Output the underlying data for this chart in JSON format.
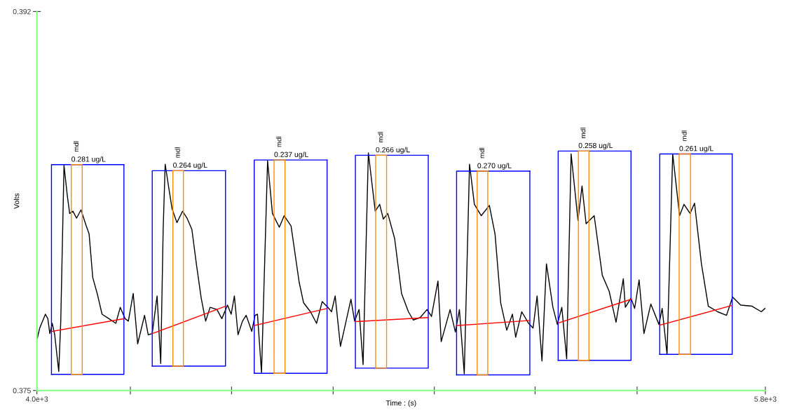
{
  "chart_data": {
    "type": "line",
    "xlabel": "Time : (s)",
    "ylabel": "Volts",
    "xlim": [
      4000,
      5800
    ],
    "ylim": [
      0.375,
      0.392
    ],
    "xticks": [
      {
        "value": 4000,
        "label": "4.0e+3"
      },
      {
        "value": 4231,
        "label": null
      },
      {
        "value": 4481,
        "label": null
      },
      {
        "value": 4732,
        "label": null
      },
      {
        "value": 4982,
        "label": null
      },
      {
        "value": 5231,
        "label": null
      },
      {
        "value": 5483,
        "label": null
      },
      {
        "value": 5800,
        "label": "5.8e+3"
      }
    ],
    "yticks": [
      0.375,
      0.392
    ],
    "series": [
      {
        "color": "#000000",
        "x": [
          4001,
          4007,
          4021,
          4027,
          4032,
          4038,
          4044,
          4054,
          4059,
          4067,
          4075,
          4081,
          4089,
          4098,
          4109,
          4121,
          4129,
          4138,
          4149,
          4161,
          4178,
          4195,
          4206,
          4218,
          4226,
          4238,
          4249,
          4266,
          4275,
          4285,
          4297,
          4306,
          4312,
          4317,
          4326,
          4334,
          4346,
          4360,
          4371,
          4383,
          4394,
          4406,
          4417,
          4428,
          4445,
          4457,
          4471,
          4480,
          4488,
          4497,
          4508,
          4517,
          4531,
          4539,
          4545,
          4555,
          4570,
          4582,
          4599,
          4611,
          4628,
          4648,
          4659,
          4676,
          4691,
          4705,
          4719,
          4728,
          4737,
          4750,
          4759,
          4776,
          4785,
          4796,
          4806,
          4819,
          4836,
          4847,
          4856,
          4867,
          4884,
          4901,
          4918,
          4930,
          4947,
          4964,
          4975,
          4991,
          4999,
          5021,
          5034,
          5044,
          5056,
          5069,
          5081,
          5098,
          5118,
          5132,
          5146,
          5161,
          5175,
          5183,
          5198,
          5215,
          5226,
          5236,
          5248,
          5259,
          5275,
          5286,
          5297,
          5309,
          5320,
          5337,
          5347,
          5357,
          5377,
          5397,
          5414,
          5431,
          5449,
          5454,
          5468,
          5477,
          5488,
          5500,
          5517,
          5537,
          5545,
          5557,
          5571,
          5588,
          5599,
          5614,
          5625,
          5642,
          5659,
          5682,
          5704,
          5719,
          5739,
          5767,
          5790,
          5799
        ],
        "values": [
          0.37734,
          0.3778,
          0.37842,
          0.37822,
          0.37755,
          0.37801,
          0.3775,
          0.37585,
          0.37811,
          0.3851,
          0.38376,
          0.38294,
          0.38304,
          0.38273,
          0.3831,
          0.38243,
          0.38202,
          0.38007,
          0.37935,
          0.37842,
          0.37822,
          0.37801,
          0.37873,
          0.37822,
          0.37811,
          0.37935,
          0.37709,
          0.37837,
          0.3775,
          0.37755,
          0.37924,
          0.37621,
          0.38222,
          0.38515,
          0.38407,
          0.38315,
          0.38253,
          0.38304,
          0.38273,
          0.38222,
          0.38068,
          0.37914,
          0.37811,
          0.37873,
          0.37863,
          0.37822,
          0.37883,
          0.37842,
          0.37924,
          0.3775,
          0.37811,
          0.37837,
          0.37765,
          0.37837,
          0.37842,
          0.3758,
          0.3853,
          0.38294,
          0.38232,
          0.38284,
          0.38238,
          0.37986,
          0.37893,
          0.37853,
          0.37801,
          0.37899,
          0.37873,
          0.37853,
          0.37924,
          0.37698,
          0.3777,
          0.37909,
          0.37811,
          0.37863,
          0.37616,
          0.38566,
          0.38304,
          0.38335,
          0.38269,
          0.38294,
          0.38181,
          0.37935,
          0.37853,
          0.37816,
          0.37827,
          0.37863,
          0.37832,
          0.37991,
          0.37719,
          0.37863,
          0.37762,
          0.37863,
          0.37575,
          0.38515,
          0.38335,
          0.38284,
          0.3833,
          0.38202,
          0.37893,
          0.3777,
          0.37842,
          0.37739,
          0.37853,
          0.37801,
          0.3778,
          0.37924,
          0.37632,
          0.38068,
          0.37873,
          0.37796,
          0.37873,
          0.37642,
          0.38561,
          0.38263,
          0.38417,
          0.38248,
          0.38284,
          0.38017,
          0.37945,
          0.37806,
          0.38001,
          0.37873,
          0.37914,
          0.37868,
          0.37996,
          0.37755,
          0.37888,
          0.37796,
          0.37868,
          0.37662,
          0.38561,
          0.38284,
          0.38335,
          0.38294,
          0.3834,
          0.38068,
          0.37878,
          0.37853,
          0.37837,
          0.37919,
          0.37883,
          0.37878,
          0.37853,
          0.37868
        ]
      },
      {
        "color": "#0000ff",
        "x": [
          4036,
          4036,
          4215
        ],
        "values": [
          0.37572,
          0.38513,
          0.38513
        ]
      },
      {
        "color": "#0000ff",
        "x": [
          4215,
          4215,
          4036
        ],
        "values": [
          0.38513,
          0.37572,
          0.37572
        ]
      },
      {
        "color": "#0000ff",
        "x": [
          4285,
          4285,
          4466
        ],
        "values": [
          0.37609,
          0.38486,
          0.38486
        ]
      },
      {
        "color": "#0000ff",
        "x": [
          4466,
          4466,
          4285
        ],
        "values": [
          0.38486,
          0.37609,
          0.37609
        ]
      },
      {
        "color": "#0000ff",
        "x": [
          4537,
          4537,
          4717
        ],
        "values": [
          0.37577,
          0.38534,
          0.38534
        ]
      },
      {
        "color": "#0000ff",
        "x": [
          4717,
          4717,
          4537
        ],
        "values": [
          0.38534,
          0.37577,
          0.37577
        ]
      },
      {
        "color": "#0000ff",
        "x": [
          4787,
          4787,
          4967
        ],
        "values": [
          0.376,
          0.38555,
          0.38555
        ]
      },
      {
        "color": "#0000ff",
        "x": [
          4967,
          4967,
          4787
        ],
        "values": [
          0.38555,
          0.376,
          0.376
        ]
      },
      {
        "color": "#0000ff",
        "x": [
          5037,
          5037,
          5218
        ],
        "values": [
          0.3757,
          0.38484,
          0.38484
        ]
      },
      {
        "color": "#0000ff",
        "x": [
          5218,
          5218,
          5037
        ],
        "values": [
          0.38484,
          0.3757,
          0.3757
        ]
      },
      {
        "color": "#0000ff",
        "x": [
          5288,
          5288,
          5468
        ],
        "values": [
          0.37635,
          0.38574,
          0.38574
        ]
      },
      {
        "color": "#0000ff",
        "x": [
          5468,
          5468,
          5288
        ],
        "values": [
          0.38574,
          0.37635,
          0.37635
        ]
      },
      {
        "color": "#0000ff",
        "x": [
          5539,
          5539,
          5718
        ],
        "values": [
          0.37662,
          0.38561,
          0.38561
        ]
      },
      {
        "color": "#0000ff",
        "x": [
          5718,
          5718,
          5539
        ],
        "values": [
          0.38561,
          0.37662,
          0.37662
        ]
      },
      {
        "color": "#ff0000",
        "x": [
          4038,
          4215
        ],
        "values": [
          0.37765,
          0.37822
        ]
      },
      {
        "color": "#ff0000",
        "x": [
          4285,
          4466
        ],
        "values": [
          0.37755,
          0.37878
        ]
      },
      {
        "color": "#ff0000",
        "x": [
          4537,
          4717
        ],
        "values": [
          0.37791,
          0.37868
        ]
      },
      {
        "color": "#ff0000",
        "x": [
          4787,
          4967
        ],
        "values": [
          0.37809,
          0.37827
        ]
      },
      {
        "color": "#ff0000",
        "x": [
          5037,
          5218
        ],
        "values": [
          0.37791,
          0.37814
        ]
      },
      {
        "color": "#ff0000",
        "x": [
          5289,
          5468
        ],
        "values": [
          0.37803,
          0.37909
        ]
      },
      {
        "color": "#ff0000",
        "x": [
          5539,
          5717
        ],
        "values": [
          0.37793,
          0.37881
        ]
      },
      {
        "name": "mdl",
        "color": "#ff8c00",
        "x": [
          4085,
          4085,
          4112
        ],
        "values": [
          0.37572,
          0.38513,
          0.38513
        ]
      },
      {
        "color": "#ff8c00",
        "x": [
          4112,
          4112,
          4085
        ],
        "values": [
          0.38513,
          0.37572,
          0.37572
        ]
      },
      {
        "name": "mdl",
        "color": "#ff8c00",
        "x": [
          4336,
          4336,
          4362
        ],
        "values": [
          0.37609,
          0.38486,
          0.38486
        ]
      },
      {
        "color": "#ff8c00",
        "x": [
          4362,
          4362,
          4336
        ],
        "values": [
          0.38486,
          0.37609,
          0.37609
        ]
      },
      {
        "name": "mdl",
        "color": "#ff8c00",
        "x": [
          4586,
          4586,
          4613
        ],
        "values": [
          0.37577,
          0.38534,
          0.38534
        ]
      },
      {
        "color": "#ff8c00",
        "x": [
          4613,
          4613,
          4586
        ],
        "values": [
          0.38534,
          0.37577,
          0.37577
        ]
      },
      {
        "name": "mdl",
        "color": "#ff8c00",
        "x": [
          4837,
          4837,
          4864
        ],
        "values": [
          0.376,
          0.38555,
          0.38555
        ]
      },
      {
        "color": "#ff8c00",
        "x": [
          4864,
          4864,
          4837
        ],
        "values": [
          0.38555,
          0.376,
          0.376
        ]
      },
      {
        "name": "mdl",
        "color": "#ff8c00",
        "x": [
          5088,
          5088,
          5114
        ],
        "values": [
          0.3757,
          0.38484,
          0.38484
        ]
      },
      {
        "color": "#ff8c00",
        "x": [
          5114,
          5114,
          5088
        ],
        "values": [
          0.38484,
          0.3757,
          0.3757
        ]
      },
      {
        "name": "mdl",
        "color": "#ff8c00",
        "x": [
          5338,
          5338,
          5364
        ],
        "values": [
          0.37635,
          0.38574,
          0.38574
        ]
      },
      {
        "color": "#ff8c00",
        "x": [
          5364,
          5364,
          5338
        ],
        "values": [
          0.38574,
          0.37635,
          0.37635
        ]
      },
      {
        "name": "mdl",
        "color": "#ff8c00",
        "x": [
          5587,
          5587,
          5615
        ],
        "values": [
          0.37662,
          0.38561,
          0.38561
        ]
      },
      {
        "color": "#ff8c00",
        "x": [
          5615,
          5615,
          5587
        ],
        "values": [
          0.38561,
          0.37662,
          0.37662
        ]
      }
    ],
    "annotations": [
      {
        "text": "0.281 ug/L",
        "x": 4085,
        "y": 0.38513
      },
      {
        "text": "0.264 ug/L",
        "x": 4336,
        "y": 0.38486
      },
      {
        "text": "0.237 ug/L",
        "x": 4586,
        "y": 0.38534
      },
      {
        "text": "0.266 ug/L",
        "x": 4837,
        "y": 0.38555
      },
      {
        "text": "0.270 ug/L",
        "x": 5088,
        "y": 0.38484
      },
      {
        "text": "0.258 ug/L",
        "x": 5338,
        "y": 0.38574
      },
      {
        "text": "0.261 ug/L",
        "x": 5587,
        "y": 0.38561
      }
    ]
  }
}
